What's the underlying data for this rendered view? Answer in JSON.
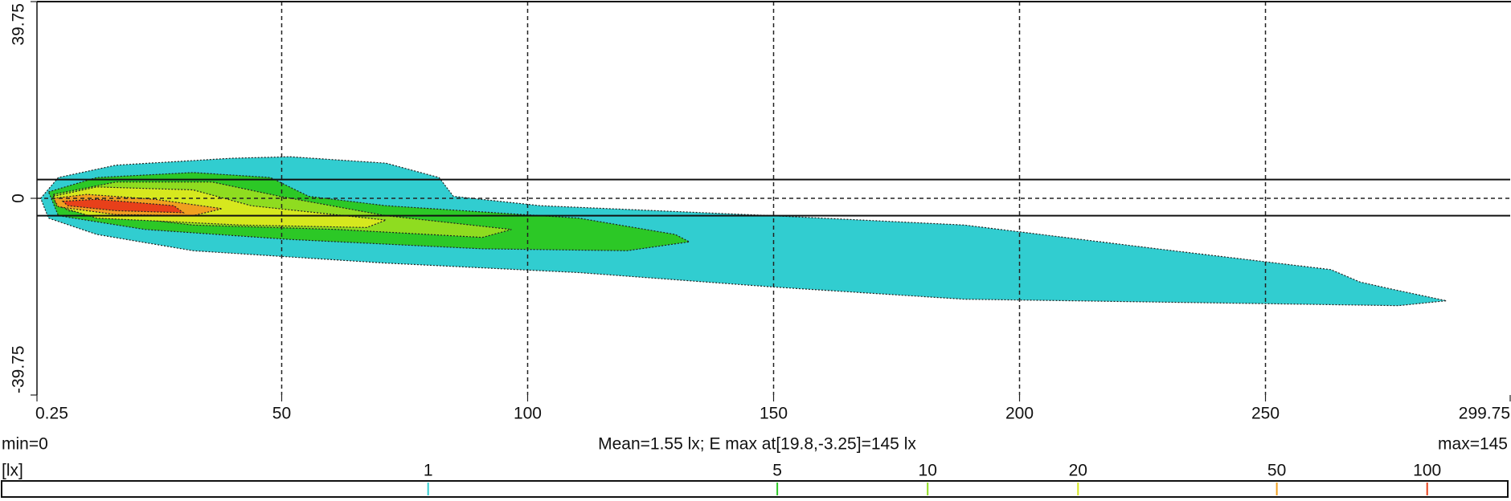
{
  "chart_data": {
    "type": "contour",
    "xlim": [
      0.25,
      299.75
    ],
    "xticks": [
      0.25,
      50,
      100,
      150,
      200,
      250,
      299.75
    ],
    "ylim": [
      -39.75,
      39.75
    ],
    "yticks": [
      -39.75,
      0,
      39.75
    ],
    "grid": true,
    "reference_lines": [
      3.8,
      -3.5
    ],
    "min_label": "min=0",
    "stats_label": "Mean=1.55 lx; E max at[19.8,-3.25]=145 lx",
    "max_label": "max=145",
    "colorbar": {
      "unit": "[lx]",
      "log": true,
      "range": [
        0.14,
        145
      ],
      "ticks": [
        1,
        5,
        10,
        20,
        50,
        100
      ]
    },
    "contours": [
      {
        "level": 1,
        "color": "#31cdd0",
        "x": [
          1.0,
          4.6,
          16.3,
          39.8,
          51.6,
          71.2,
          82.0,
          84.9,
          102.6,
          149.6,
          188.8,
          228.0,
          263.3,
          269.2,
          275.0,
          286.8,
          277.0,
          210.4,
          188.8,
          149.6,
          110.4,
          71.2,
          32.0,
          12.4,
          2.6
        ],
        "y": [
          0,
          4.2,
          6.7,
          8.1,
          8.4,
          7.1,
          4.2,
          0.4,
          -1.5,
          -3.5,
          -5.4,
          -10.2,
          -14.4,
          -16.9,
          -18.2,
          -20.7,
          -21.7,
          -20.7,
          -20.4,
          -17.9,
          -15.0,
          -13.1,
          -10.6,
          -7.3,
          -4.0
        ]
      },
      {
        "level": 5,
        "color": "#2cc826",
        "x": [
          2.6,
          12.4,
          32.0,
          47.7,
          55.5,
          71.2,
          110.4,
          130.0,
          132.9,
          120.2,
          90.8,
          51.6,
          22.2,
          4.6
        ],
        "y": [
          1.3,
          4.2,
          5.2,
          4.2,
          0.4,
          -1.5,
          -4.0,
          -7.3,
          -8.8,
          -10.6,
          -10.2,
          -8.3,
          -6.3,
          -3.5
        ]
      },
      {
        "level": 10,
        "color": "#8fdc20",
        "x": [
          3.6,
          16.3,
          35.9,
          49.6,
          71.2,
          96.7,
          90.8,
          61.4,
          32.0,
          6.5
        ],
        "y": [
          0.8,
          3.3,
          3.3,
          0.4,
          -3.5,
          -6.3,
          -7.9,
          -6.3,
          -5.4,
          -2.5
        ]
      },
      {
        "level": 20,
        "color": "#d6e81e",
        "x": [
          3.6,
          12.4,
          32.0,
          43.8,
          71.2,
          67.3,
          41.8,
          12.4,
          4.2
        ],
        "y": [
          0.4,
          2.3,
          1.7,
          -1.5,
          -4.4,
          -5.9,
          -5.4,
          -4.0,
          -1.5
        ]
      },
      {
        "level": 50,
        "color": "#f0a020",
        "x": [
          3.6,
          10.4,
          24.2,
          37.9,
          32.0,
          16.3,
          4.6
        ],
        "y": [
          0,
          0.8,
          -0.2,
          -2.1,
          -3.5,
          -3.3,
          -1.7
        ]
      },
      {
        "level": 100,
        "color": "#e8401a",
        "x": [
          5.5,
          12.4,
          28.1,
          30.0,
          16.3,
          6.5
        ],
        "y": [
          -0.6,
          -0.2,
          -1.5,
          -2.9,
          -2.5,
          -1.5
        ]
      }
    ]
  }
}
